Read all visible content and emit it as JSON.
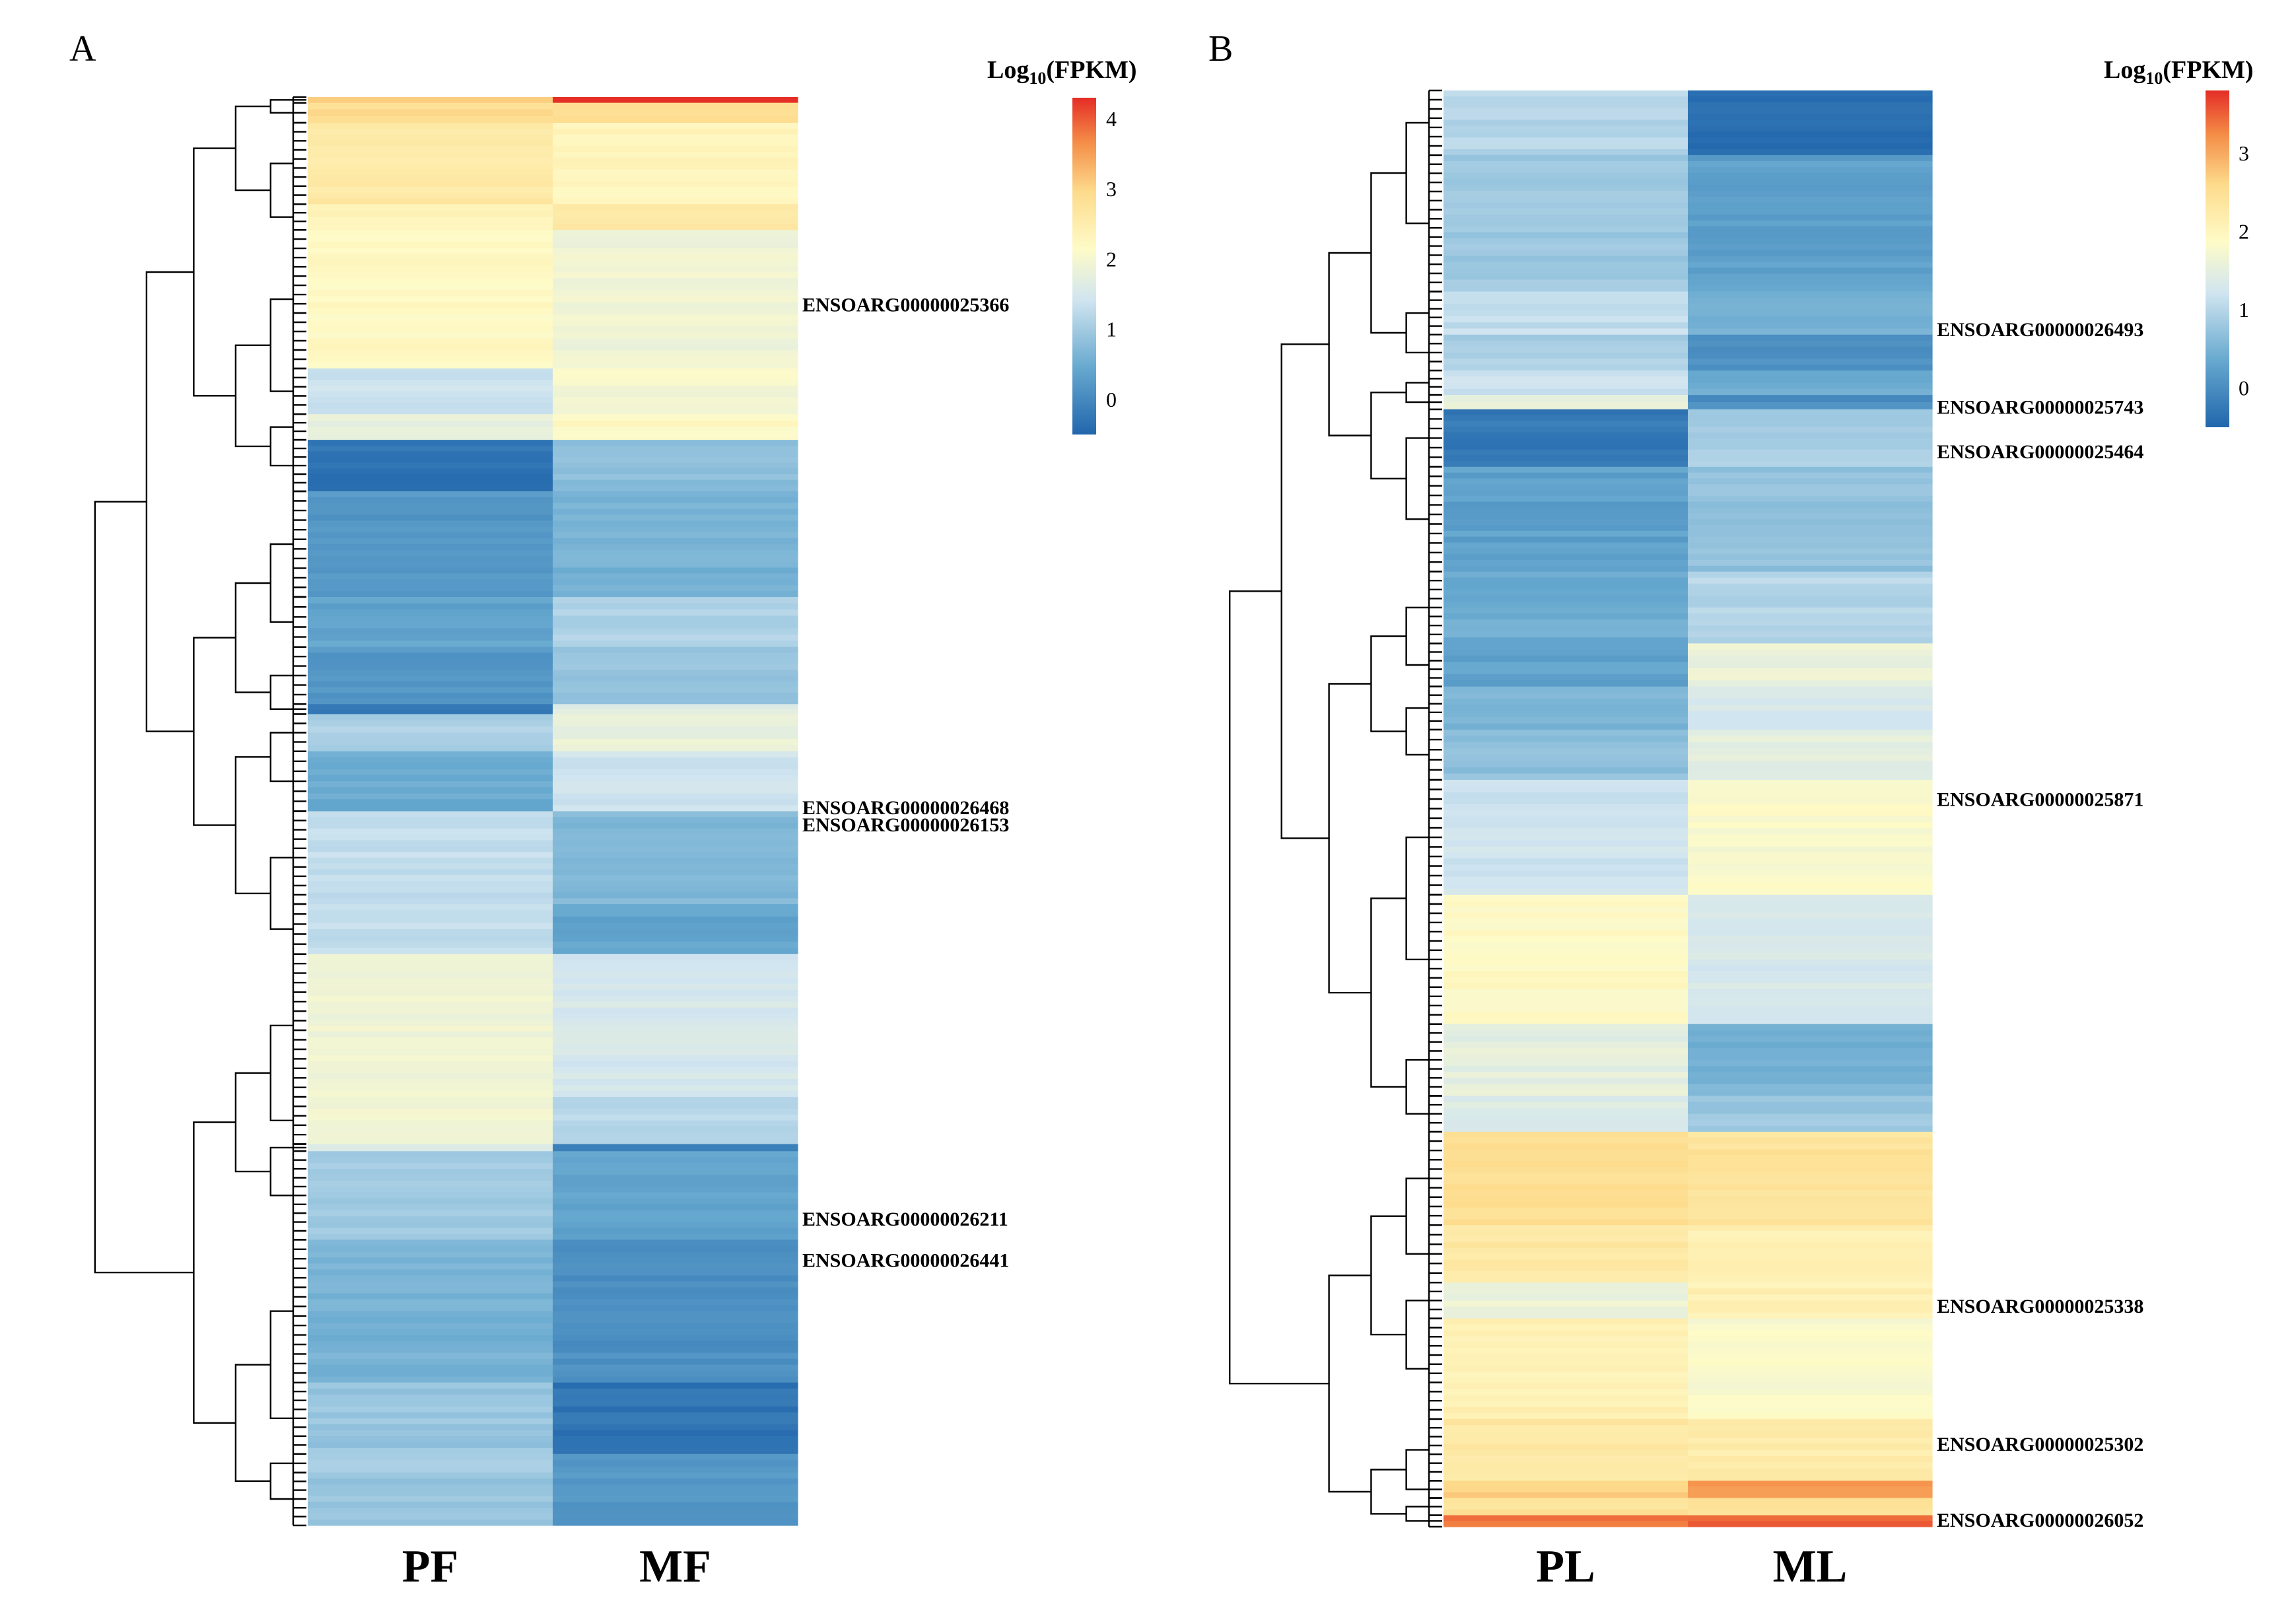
{
  "chart_data": [
    {
      "type": "heatmap",
      "panel": "A",
      "columns": [
        "PF",
        "MF"
      ],
      "legend": {
        "title_prefix": "Log",
        "title_sub": "10",
        "title_suffix": "(FPKM)",
        "ticks": [
          4,
          3,
          2,
          1,
          0
        ],
        "range": [
          -0.5,
          4.3
        ]
      },
      "gene_labels": [
        {
          "name": "ENSOARG00000025366",
          "row": 0.145
        },
        {
          "name": "ENSOARG00000026468",
          "row": 0.497
        },
        {
          "name": "ENSOARG00000026153",
          "row": 0.509
        },
        {
          "name": "ENSOARG00000026211",
          "row": 0.785
        },
        {
          "name": "ENSOARG00000026441",
          "row": 0.814
        }
      ],
      "blocks": [
        {
          "from": 0.0,
          "to": 0.004,
          "values": [
            3.0,
            4.2
          ]
        },
        {
          "from": 0.004,
          "to": 0.018,
          "values": [
            2.9,
            2.9
          ]
        },
        {
          "from": 0.018,
          "to": 0.075,
          "values": [
            2.6,
            2.3
          ]
        },
        {
          "from": 0.075,
          "to": 0.093,
          "values": [
            2.3,
            2.6
          ]
        },
        {
          "from": 0.093,
          "to": 0.19,
          "values": [
            2.2,
            1.9
          ]
        },
        {
          "from": 0.19,
          "to": 0.222,
          "values": [
            1.4,
            2.0
          ]
        },
        {
          "from": 0.222,
          "to": 0.24,
          "values": [
            1.8,
            2.2
          ]
        },
        {
          "from": 0.24,
          "to": 0.276,
          "values": [
            -0.3,
            0.8
          ]
        },
        {
          "from": 0.276,
          "to": 0.35,
          "values": [
            0.2,
            0.6
          ]
        },
        {
          "from": 0.35,
          "to": 0.385,
          "values": [
            0.4,
            1.1
          ]
        },
        {
          "from": 0.385,
          "to": 0.425,
          "values": [
            0.2,
            0.9
          ]
        },
        {
          "from": 0.425,
          "to": 0.432,
          "values": [
            -0.2,
            1.6
          ]
        },
        {
          "from": 0.432,
          "to": 0.458,
          "values": [
            1.1,
            1.8
          ]
        },
        {
          "from": 0.458,
          "to": 0.5,
          "values": [
            0.5,
            1.4
          ]
        },
        {
          "from": 0.5,
          "to": 0.565,
          "values": [
            1.3,
            0.7
          ]
        },
        {
          "from": 0.565,
          "to": 0.6,
          "values": [
            1.3,
            0.4
          ]
        },
        {
          "from": 0.6,
          "to": 0.7,
          "values": [
            1.9,
            1.5
          ]
        },
        {
          "from": 0.7,
          "to": 0.733,
          "values": [
            2.0,
            1.2
          ]
        },
        {
          "from": 0.733,
          "to": 0.738,
          "values": [
            1.7,
            -0.1
          ]
        },
        {
          "from": 0.738,
          "to": 0.8,
          "values": [
            1.0,
            0.4
          ]
        },
        {
          "from": 0.8,
          "to": 0.9,
          "values": [
            0.6,
            0.1
          ]
        },
        {
          "from": 0.9,
          "to": 0.95,
          "values": [
            0.9,
            -0.3
          ]
        },
        {
          "from": 0.95,
          "to": 0.963,
          "values": [
            1.0,
            0.2
          ]
        },
        {
          "from": 0.963,
          "to": 1.0,
          "values": [
            0.9,
            0.2
          ]
        }
      ]
    },
    {
      "type": "heatmap",
      "panel": "B",
      "columns": [
        "PL",
        "ML"
      ],
      "legend": {
        "title_prefix": "Log",
        "title_sub": "10",
        "title_suffix": "(FPKM)",
        "ticks": [
          3,
          2,
          1,
          0
        ],
        "range": [
          -0.5,
          3.8
        ]
      },
      "gene_labels": [
        {
          "name": "ENSOARG00000026493",
          "row": 0.166
        },
        {
          "name": "ENSOARG00000025743",
          "row": 0.22
        },
        {
          "name": "ENSOARG00000025464",
          "row": 0.251
        },
        {
          "name": "ENSOARG00000025871",
          "row": 0.493
        },
        {
          "name": "ENSOARG00000025338",
          "row": 0.846
        },
        {
          "name": "ENSOARG00000025302",
          "row": 0.942
        },
        {
          "name": "ENSOARG00000026052",
          "row": 0.995
        }
      ],
      "blocks": [
        {
          "from": 0.0,
          "to": 0.045,
          "values": [
            1.0,
            -0.35
          ]
        },
        {
          "from": 0.045,
          "to": 0.14,
          "values": [
            0.8,
            0.25
          ]
        },
        {
          "from": 0.14,
          "to": 0.17,
          "values": [
            1.1,
            0.5
          ]
        },
        {
          "from": 0.17,
          "to": 0.195,
          "values": [
            0.9,
            0.05
          ]
        },
        {
          "from": 0.195,
          "to": 0.212,
          "values": [
            1.2,
            0.4
          ]
        },
        {
          "from": 0.212,
          "to": 0.222,
          "values": [
            1.6,
            0.0
          ]
        },
        {
          "from": 0.222,
          "to": 0.262,
          "values": [
            -0.25,
            0.9
          ]
        },
        {
          "from": 0.262,
          "to": 0.335,
          "values": [
            0.25,
            0.7
          ]
        },
        {
          "from": 0.335,
          "to": 0.385,
          "values": [
            0.4,
            1.0
          ]
        },
        {
          "from": 0.385,
          "to": 0.415,
          "values": [
            0.3,
            1.6
          ]
        },
        {
          "from": 0.415,
          "to": 0.445,
          "values": [
            0.5,
            1.3
          ]
        },
        {
          "from": 0.445,
          "to": 0.48,
          "values": [
            0.7,
            1.5
          ]
        },
        {
          "from": 0.48,
          "to": 0.56,
          "values": [
            1.2,
            1.8
          ]
        },
        {
          "from": 0.56,
          "to": 0.65,
          "values": [
            1.9,
            1.3
          ]
        },
        {
          "from": 0.65,
          "to": 0.7,
          "values": [
            1.5,
            0.5
          ]
        },
        {
          "from": 0.7,
          "to": 0.725,
          "values": [
            1.4,
            0.8
          ]
        },
        {
          "from": 0.725,
          "to": 0.79,
          "values": [
            2.5,
            2.4
          ]
        },
        {
          "from": 0.79,
          "to": 0.83,
          "values": [
            2.3,
            2.1
          ]
        },
        {
          "from": 0.83,
          "to": 0.855,
          "values": [
            1.6,
            2.1
          ]
        },
        {
          "from": 0.855,
          "to": 0.925,
          "values": [
            2.1,
            1.8
          ]
        },
        {
          "from": 0.925,
          "to": 0.968,
          "values": [
            2.3,
            2.2
          ]
        },
        {
          "from": 0.968,
          "to": 0.98,
          "values": [
            2.7,
            3.1
          ]
        },
        {
          "from": 0.98,
          "to": 0.992,
          "values": [
            2.4,
            2.5
          ]
        },
        {
          "from": 0.992,
          "to": 1.0,
          "values": [
            3.4,
            3.5
          ]
        }
      ]
    }
  ]
}
